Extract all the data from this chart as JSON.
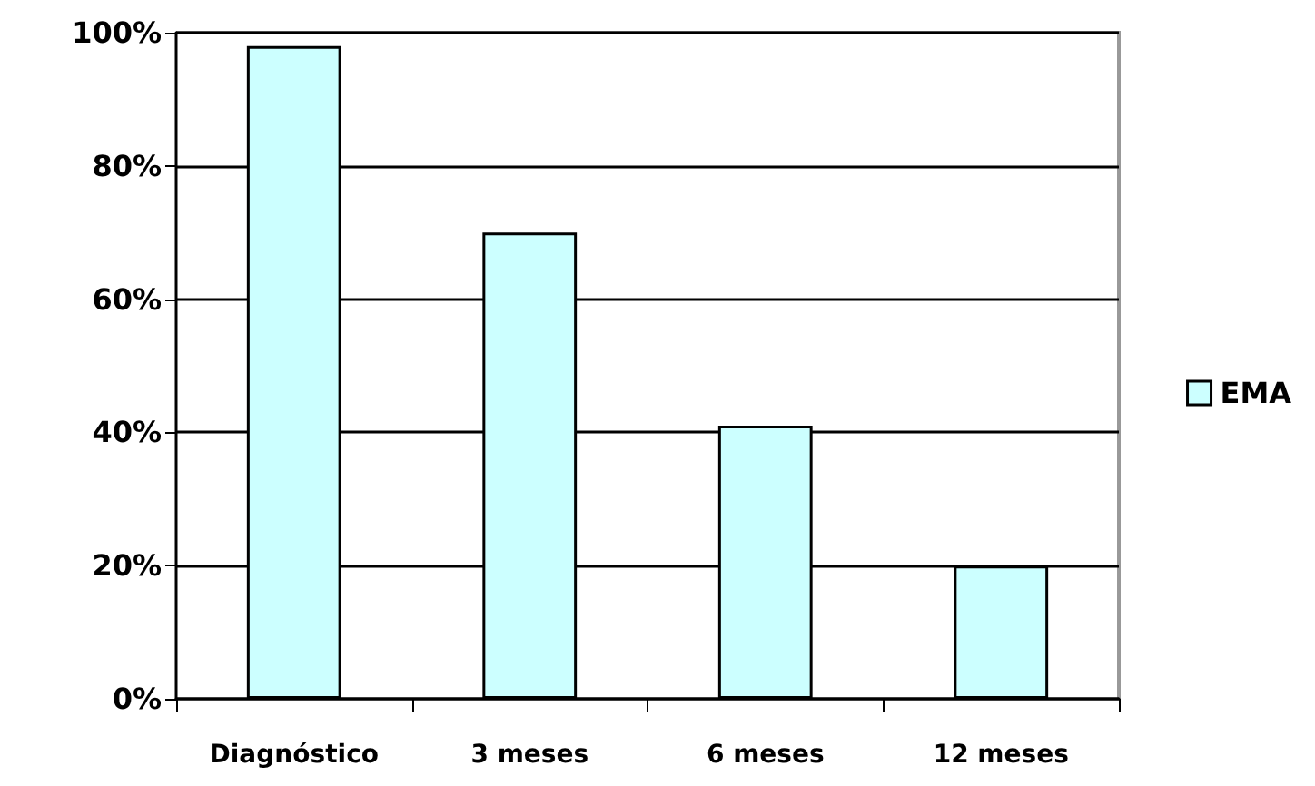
{
  "chart_data": {
    "type": "bar",
    "categories": [
      "Diagnóstico",
      "3 meses",
      "6 meses",
      "12 meses"
    ],
    "series": [
      {
        "name": "EMA",
        "color": "#ccffff",
        "values": [
          98,
          70,
          41,
          20
        ]
      }
    ],
    "ylim": [
      0,
      100
    ],
    "yticks": [
      {
        "value": 0,
        "label": "0%"
      },
      {
        "value": 20,
        "label": "20%"
      },
      {
        "value": 40,
        "label": "40%"
      },
      {
        "value": 60,
        "label": "60%"
      },
      {
        "value": 80,
        "label": "80%"
      },
      {
        "value": 100,
        "label": "100%"
      }
    ],
    "grid": "y",
    "legend": "right"
  }
}
